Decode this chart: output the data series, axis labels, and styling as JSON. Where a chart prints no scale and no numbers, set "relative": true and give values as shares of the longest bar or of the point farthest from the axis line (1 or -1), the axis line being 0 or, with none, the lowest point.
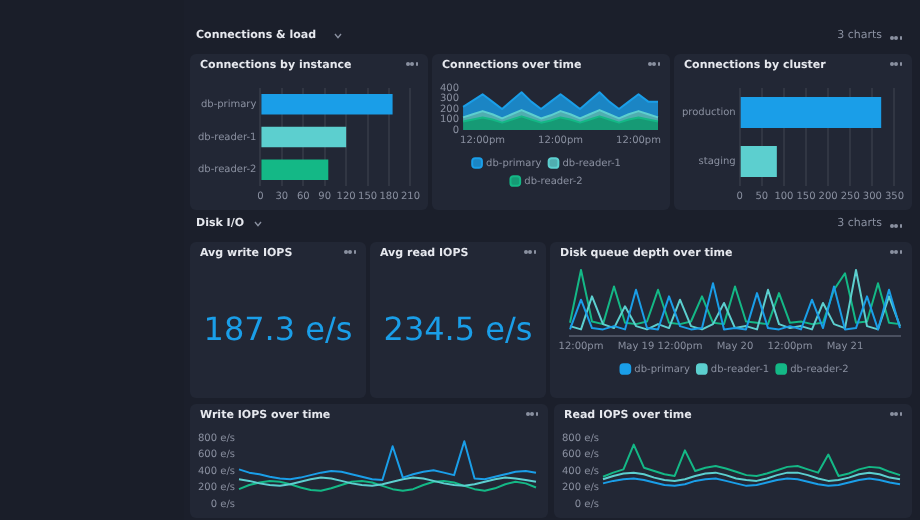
{
  "chart_data": [
    {
      "type": "bar",
      "title": "Connections by instance",
      "annotations": [
        "Connections & load",
        "3 charts"
      ],
      "orientation": "horizontal",
      "categories": [
        "db-primary",
        "db-reader-1",
        "db-reader-2"
      ],
      "values": [
        185,
        120,
        95
      ],
      "colors": [
        "#1a9ee8",
        "#5ccfcf",
        "#14b886"
      ],
      "xlim": [
        0,
        210
      ],
      "xticks": [
        0,
        30,
        60,
        90,
        120,
        150,
        180,
        210
      ],
      "grid": "x"
    },
    {
      "type": "area",
      "title": "Connections over time",
      "stacked": true,
      "legend": "bottom",
      "marker": "none",
      "categories": [
        null,
        null,
        "12:00pm",
        null,
        null,
        null,
        null,
        null,
        null,
        null,
        "12:00pm",
        null,
        null,
        null,
        null,
        null,
        null,
        null,
        "12:00pm",
        null,
        null
      ],
      "ylim": [
        0,
        400
      ],
      "yticks": [
        0,
        100,
        200,
        300,
        400
      ],
      "series": [
        {
          "name": "db-reader-2",
          "color": "#14b886",
          "values": [
            80,
            100,
            120,
            100,
            70,
            100,
            130,
            100,
            70,
            90,
            120,
            100,
            70,
            100,
            130,
            100,
            70,
            100,
            120,
            100,
            80
          ]
        },
        {
          "name": "db-reader-1",
          "color": "#5ccfcf",
          "values": [
            40,
            50,
            60,
            50,
            40,
            50,
            60,
            50,
            40,
            50,
            60,
            50,
            40,
            50,
            60,
            50,
            40,
            50,
            60,
            50,
            40
          ]
        },
        {
          "name": "db-primary",
          "color": "#1a9ee8",
          "values": [
            100,
            130,
            160,
            120,
            90,
            130,
            170,
            120,
            90,
            130,
            160,
            120,
            90,
            130,
            170,
            120,
            90,
            120,
            160,
            120,
            150
          ]
        }
      ]
    },
    {
      "type": "bar",
      "title": "Connections by cluster",
      "orientation": "horizontal",
      "categories": [
        "production",
        "staging"
      ],
      "values": [
        320,
        84
      ],
      "colors": [
        "#1a9ee8",
        "#5ccfcf"
      ],
      "xlim": [
        0,
        350
      ],
      "xticks": [
        0,
        50,
        100,
        150,
        200,
        250,
        300,
        350
      ],
      "grid": "x"
    },
    {
      "type": "other",
      "title": "Avg write IOPS",
      "annotations": [
        "Disk I/O",
        "3 charts",
        "187.3 e/s"
      ],
      "color": "#1a9ee8"
    },
    {
      "type": "other",
      "title": "Avg read IOPS",
      "annotations": [
        "234.5 e/s"
      ],
      "color": "#1a9ee8"
    },
    {
      "type": "line",
      "title": "Disk queue depth over time",
      "relative": true,
      "legend": "bottom",
      "marker": "none",
      "categories": [
        null,
        "12:00pm",
        null,
        null,
        null,
        null,
        "May 19",
        null,
        null,
        null,
        "12:00pm",
        null,
        null,
        null,
        null,
        "May 20",
        null,
        null,
        null,
        null,
        "12:00pm",
        null,
        null,
        null,
        null,
        "May 21",
        null,
        null,
        null,
        null,
        null
      ],
      "series": [
        {
          "name": "db-primary",
          "color": "#1a9ee8",
          "values": [
            0.1,
            0.55,
            0.12,
            0.1,
            0.15,
            0.1,
            0.7,
            0.12,
            0.1,
            0.6,
            0.15,
            0.1,
            0.12,
            0.8,
            0.1,
            0.12,
            0.1,
            0.65,
            0.12,
            0.1,
            0.15,
            0.1,
            0.55,
            0.12,
            0.75,
            0.1,
            0.12,
            0.6,
            0.1,
            0.7,
            0.12
          ]
        },
        {
          "name": "db-reader-1",
          "color": "#5ccfcf",
          "values": [
            0.15,
            0.1,
            0.6,
            0.18,
            0.12,
            0.45,
            0.15,
            0.1,
            0.18,
            0.12,
            0.55,
            0.15,
            0.1,
            0.18,
            0.5,
            0.12,
            0.15,
            0.1,
            0.7,
            0.18,
            0.12,
            0.15,
            0.1,
            0.5,
            0.18,
            0.12,
            1,
            0.15,
            0.1,
            0.6,
            0.15
          ]
        },
        {
          "name": "db-reader-2",
          "color": "#14b886",
          "values": [
            0.2,
            1,
            0.22,
            0.18,
            0.75,
            0.2,
            0.18,
            0.22,
            0.7,
            0.2,
            0.18,
            0.22,
            0.6,
            0.2,
            0.18,
            0.75,
            0.22,
            0.2,
            0.18,
            0.65,
            0.2,
            0.22,
            0.18,
            0.2,
            0.7,
            0.95,
            0.2,
            0.22,
            0.8,
            0.2,
            0.18
          ]
        }
      ]
    },
    {
      "type": "line",
      "title": "Write IOPS over time",
      "marker": "none",
      "tick_labels": "y",
      "categories": [
        null,
        null,
        null,
        null,
        null,
        null,
        null,
        null,
        null,
        null,
        null,
        null,
        null,
        null,
        null,
        null,
        null,
        null,
        null,
        null,
        null,
        null,
        null,
        null,
        null,
        null,
        null,
        null,
        null,
        null
      ],
      "ylim": [
        0,
        800
      ],
      "yticks": [
        {
          "value": 0,
          "label": "0 e/s"
        },
        {
          "value": 200,
          "label": "200 e/s"
        },
        {
          "value": 400,
          "label": "400 e/s"
        },
        {
          "value": 600,
          "label": "600 e/s"
        },
        {
          "value": 800,
          "label": "800 e/s"
        }
      ],
      "series": [
        {
          "color": "#1a9ee8",
          "values": [
            420,
            380,
            360,
            330,
            310,
            300,
            320,
            350,
            380,
            400,
            390,
            360,
            330,
            300,
            290,
            700,
            320,
            360,
            390,
            410,
            380,
            350,
            760,
            310,
            300,
            330,
            360,
            390,
            400,
            380
          ]
        },
        {
          "color": "#5ccfcf",
          "values": [
            300,
            280,
            250,
            230,
            220,
            240,
            270,
            300,
            320,
            310,
            280,
            250,
            230,
            220,
            240,
            270,
            300,
            320,
            310,
            280,
            250,
            230,
            220,
            240,
            270,
            300,
            320,
            310,
            290,
            270
          ]
        },
        {
          "color": "#14b886",
          "values": [
            180,
            230,
            260,
            280,
            270,
            240,
            200,
            170,
            160,
            190,
            230,
            270,
            280,
            260,
            220,
            180,
            160,
            180,
            230,
            270,
            280,
            260,
            220,
            180,
            160,
            190,
            240,
            270,
            250,
            200
          ]
        }
      ]
    },
    {
      "type": "line",
      "title": "Read IOPS over time",
      "marker": "none",
      "tick_labels": "y",
      "categories": [
        null,
        null,
        null,
        null,
        null,
        null,
        null,
        null,
        null,
        null,
        null,
        null,
        null,
        null,
        null,
        null,
        null,
        null,
        null,
        null,
        null,
        null,
        null,
        null,
        null,
        null,
        null,
        null,
        null,
        null
      ],
      "ylim": [
        0,
        800
      ],
      "yticks": [
        {
          "value": 0,
          "label": "0 e/s"
        },
        {
          "value": 200,
          "label": "200 e/s"
        },
        {
          "value": 400,
          "label": "400 e/s"
        },
        {
          "value": 600,
          "label": "600 e/s"
        },
        {
          "value": 800,
          "label": "800 e/s"
        }
      ],
      "series": [
        {
          "color": "#14b886",
          "values": [
            330,
            380,
            420,
            720,
            440,
            400,
            360,
            340,
            650,
            400,
            440,
            460,
            430,
            390,
            350,
            340,
            370,
            410,
            450,
            460,
            420,
            380,
            600,
            340,
            370,
            420,
            450,
            440,
            390,
            350
          ]
        },
        {
          "color": "#5ccfcf",
          "values": [
            300,
            340,
            370,
            380,
            360,
            320,
            290,
            280,
            300,
            340,
            370,
            380,
            350,
            310,
            290,
            280,
            310,
            350,
            380,
            380,
            350,
            310,
            280,
            290,
            320,
            360,
            380,
            360,
            320,
            300
          ]
        },
        {
          "color": "#1a9ee8",
          "values": [
            250,
            280,
            300,
            310,
            290,
            260,
            230,
            220,
            240,
            280,
            300,
            310,
            280,
            250,
            220,
            230,
            260,
            290,
            310,
            300,
            270,
            240,
            220,
            230,
            260,
            290,
            310,
            290,
            260,
            240
          ]
        }
      ]
    }
  ]
}
